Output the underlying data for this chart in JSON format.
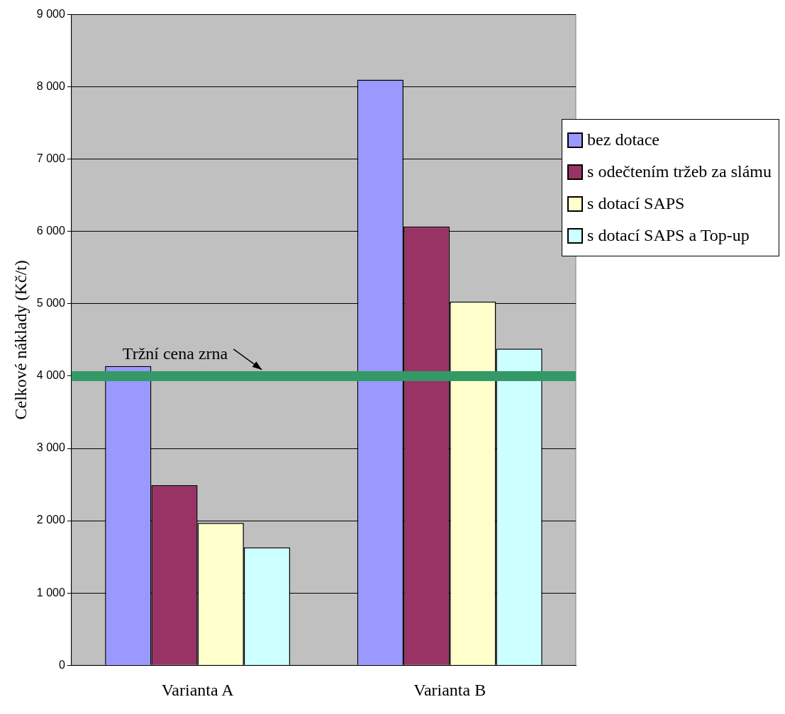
{
  "chart_data": {
    "type": "bar",
    "ylabel": "Celkové náklady (Kč/t)",
    "categories": [
      "Varianta A",
      "Varianta B"
    ],
    "series": [
      {
        "name": "bez dotace",
        "color": "#9999ff",
        "values": [
          4140,
          8100
        ]
      },
      {
        "name": "s odečtením tržeb za slámu",
        "color": "#993366",
        "values": [
          2490,
          6070
        ]
      },
      {
        "name": "s dotací SAPS",
        "color": "#ffffcc",
        "values": [
          1970,
          5030
        ]
      },
      {
        "name": "s dotací SAPS a Top-up",
        "color": "#ccffff",
        "values": [
          1630,
          4380
        ]
      }
    ],
    "ylim": [
      0,
      9000
    ],
    "yticks": [
      0,
      {
        "value": 1000,
        "label": "1 000"
      },
      {
        "value": 2000,
        "label": "2 000"
      },
      {
        "value": 3000,
        "label": "3 000"
      },
      {
        "value": 4000,
        "label": "4 000"
      },
      {
        "value": 5000,
        "label": "5 000"
      },
      {
        "value": 6000,
        "label": "6 000"
      },
      {
        "value": 7000,
        "label": "7 000"
      },
      {
        "value": 8000,
        "label": "8 000"
      },
      {
        "value": 9000,
        "label": "9 000"
      }
    ],
    "grid": "y",
    "legend": "right",
    "ref_lines": [
      {
        "axis": "y",
        "value": 4000,
        "label": "Tržní cena zrna",
        "color": "#339966"
      }
    ]
  }
}
